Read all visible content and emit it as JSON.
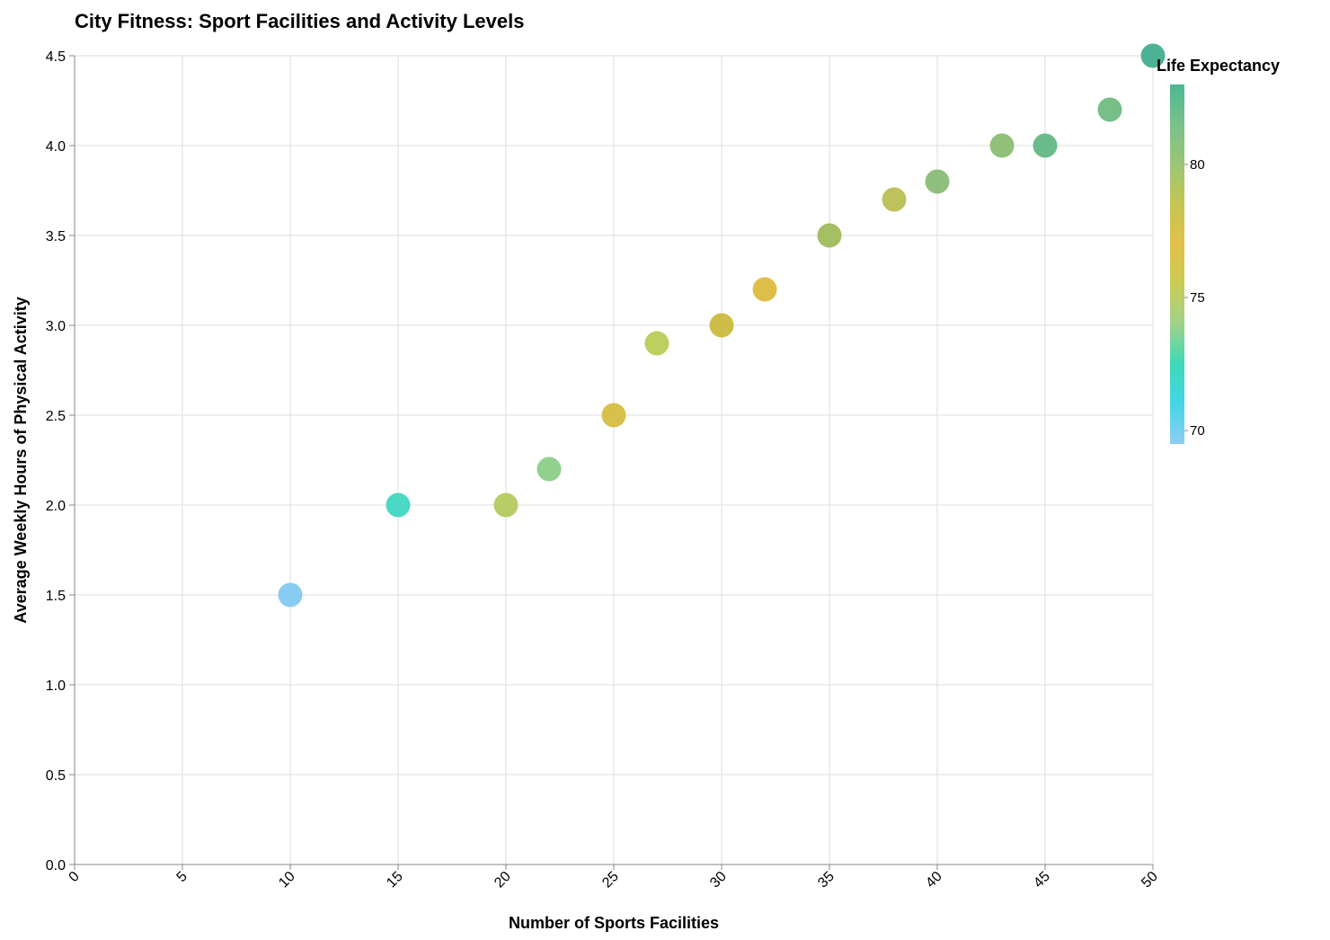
{
  "chart_data": {
    "type": "scatter",
    "title": "City Fitness: Sport Facilities and Activity Levels",
    "xlabel": "Number of Sports Facilities",
    "ylabel": "Average Weekly Hours of Physical Activity",
    "xlim": [
      0,
      50
    ],
    "ylim": [
      0,
      4.5
    ],
    "x_ticks": [
      0,
      5,
      10,
      15,
      20,
      25,
      30,
      35,
      40,
      45,
      50
    ],
    "y_ticks": [
      0.0,
      0.5,
      1.0,
      1.5,
      2.0,
      2.5,
      3.0,
      3.5,
      4.0,
      4.5
    ],
    "grid": true,
    "color_legend": {
      "title": "Life Expectancy",
      "placement": "top-right",
      "domain": [
        69.5,
        83
      ],
      "ticks": [
        70,
        75,
        80
      ],
      "gradient_colors": [
        "#8ecdf5",
        "#45d6e6",
        "#3dd9b8",
        "#9fd28a",
        "#c9cc55",
        "#e2c04a",
        "#c4c653",
        "#9cc575",
        "#78c18a",
        "#4db892"
      ]
    },
    "points": [
      {
        "x": 10,
        "y": 1.5,
        "life_expectancy": 70,
        "color": "#7ec8f0"
      },
      {
        "x": 15,
        "y": 2.0,
        "life_expectancy": 73,
        "color": "#3ad6c0"
      },
      {
        "x": 20,
        "y": 2.0,
        "life_expectancy": 79,
        "color": "#b3c95a"
      },
      {
        "x": 22,
        "y": 2.2,
        "life_expectancy": 81,
        "color": "#86cd83"
      },
      {
        "x": 25,
        "y": 2.5,
        "life_expectancy": 77,
        "color": "#d4bb3c"
      },
      {
        "x": 27,
        "y": 2.9,
        "life_expectancy": 79,
        "color": "#b7cb50"
      },
      {
        "x": 30,
        "y": 3.0,
        "life_expectancy": 78,
        "color": "#c9b93a"
      },
      {
        "x": 32,
        "y": 3.2,
        "life_expectancy": 77,
        "color": "#dcb73a"
      },
      {
        "x": 35,
        "y": 3.5,
        "life_expectancy": 80,
        "color": "#9cba57"
      },
      {
        "x": 38,
        "y": 3.7,
        "life_expectancy": 79,
        "color": "#b9bd4c"
      },
      {
        "x": 40,
        "y": 3.8,
        "life_expectancy": 81,
        "color": "#86ba72"
      },
      {
        "x": 43,
        "y": 4.0,
        "life_expectancy": 81,
        "color": "#88bc6e"
      },
      {
        "x": 45,
        "y": 4.0,
        "life_expectancy": 82,
        "color": "#5eb680"
      },
      {
        "x": 48,
        "y": 4.2,
        "life_expectancy": 82,
        "color": "#6cb97e"
      },
      {
        "x": 50,
        "y": 4.5,
        "life_expectancy": 83,
        "color": "#3eab8c"
      }
    ]
  }
}
